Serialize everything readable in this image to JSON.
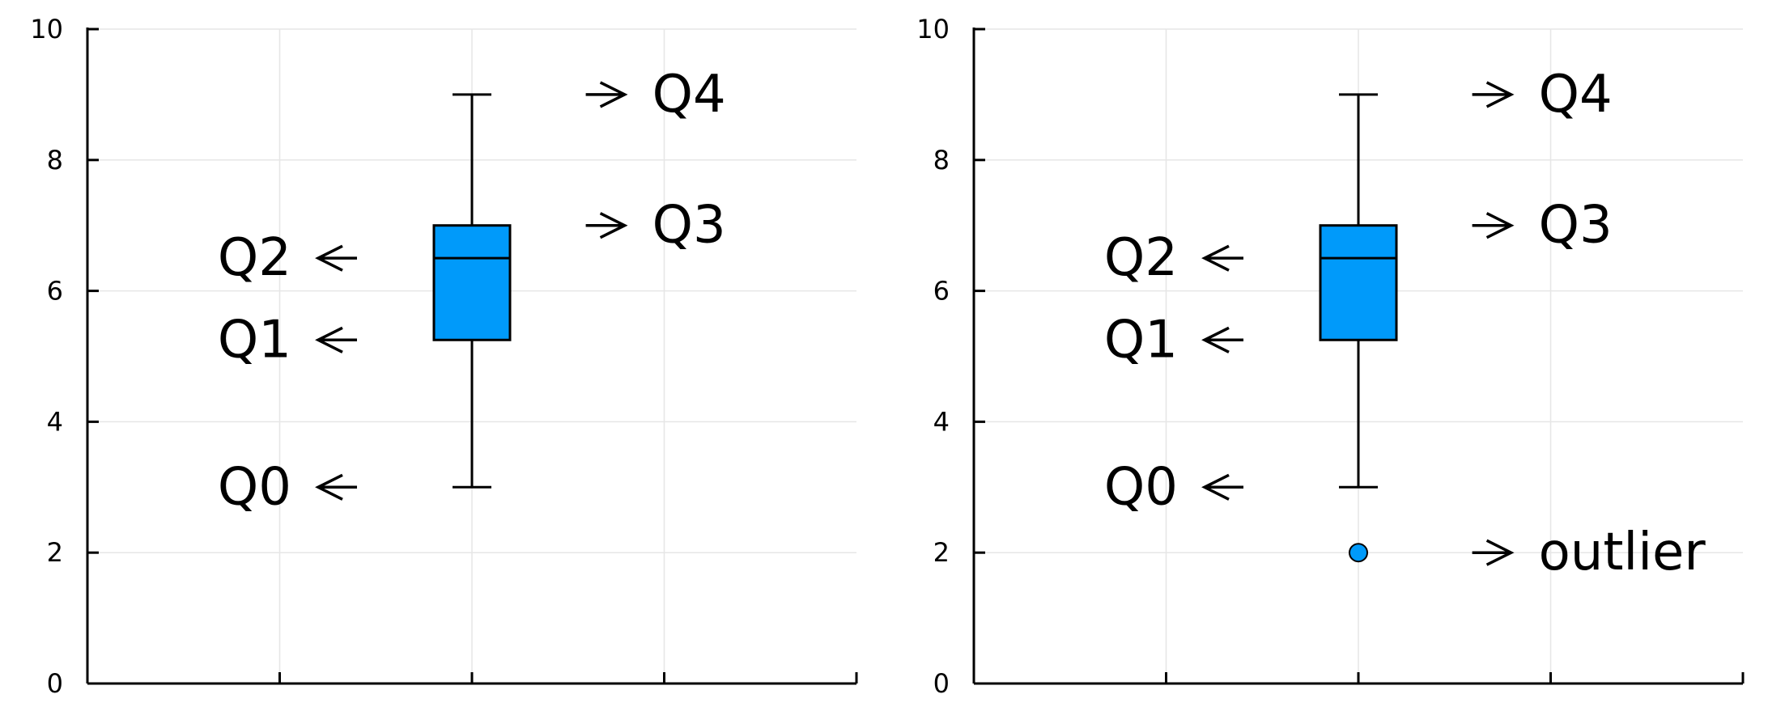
{
  "colors": {
    "box_fill": "#009AFA",
    "axis": "#000000",
    "grid": "#E6E6E6"
  },
  "chart_data": [
    {
      "type": "box",
      "title": "",
      "xlabel": "",
      "ylabel": "",
      "ylim": [
        0,
        10
      ],
      "yticks": [
        "0",
        "2",
        "4",
        "6",
        "8",
        "10"
      ],
      "grid": true,
      "box": {
        "q0": 3,
        "q1": 5.25,
        "q2": 6.5,
        "q3": 7,
        "q4": 9,
        "outliers": []
      },
      "annotations": [
        {
          "text": "Q4",
          "y": 9,
          "side": "right"
        },
        {
          "text": "Q3",
          "y": 7,
          "side": "right"
        },
        {
          "text": "Q2",
          "y": 6.5,
          "side": "left"
        },
        {
          "text": "Q1",
          "y": 5.25,
          "side": "left"
        },
        {
          "text": "Q0",
          "y": 3,
          "side": "left"
        }
      ]
    },
    {
      "type": "box",
      "title": "",
      "xlabel": "",
      "ylabel": "",
      "ylim": [
        0,
        10
      ],
      "yticks": [
        "0",
        "2",
        "4",
        "6",
        "8",
        "10"
      ],
      "grid": true,
      "box": {
        "q0": 3,
        "q1": 5.25,
        "q2": 6.5,
        "q3": 7,
        "q4": 9,
        "outliers": [
          2
        ]
      },
      "annotations": [
        {
          "text": "Q4",
          "y": 9,
          "side": "right"
        },
        {
          "text": "Q3",
          "y": 7,
          "side": "right"
        },
        {
          "text": "Q2",
          "y": 6.5,
          "side": "left"
        },
        {
          "text": "Q1",
          "y": 5.25,
          "side": "left"
        },
        {
          "text": "Q0",
          "y": 3,
          "side": "left"
        },
        {
          "text": "outlier",
          "y": 2,
          "side": "right"
        }
      ]
    }
  ]
}
